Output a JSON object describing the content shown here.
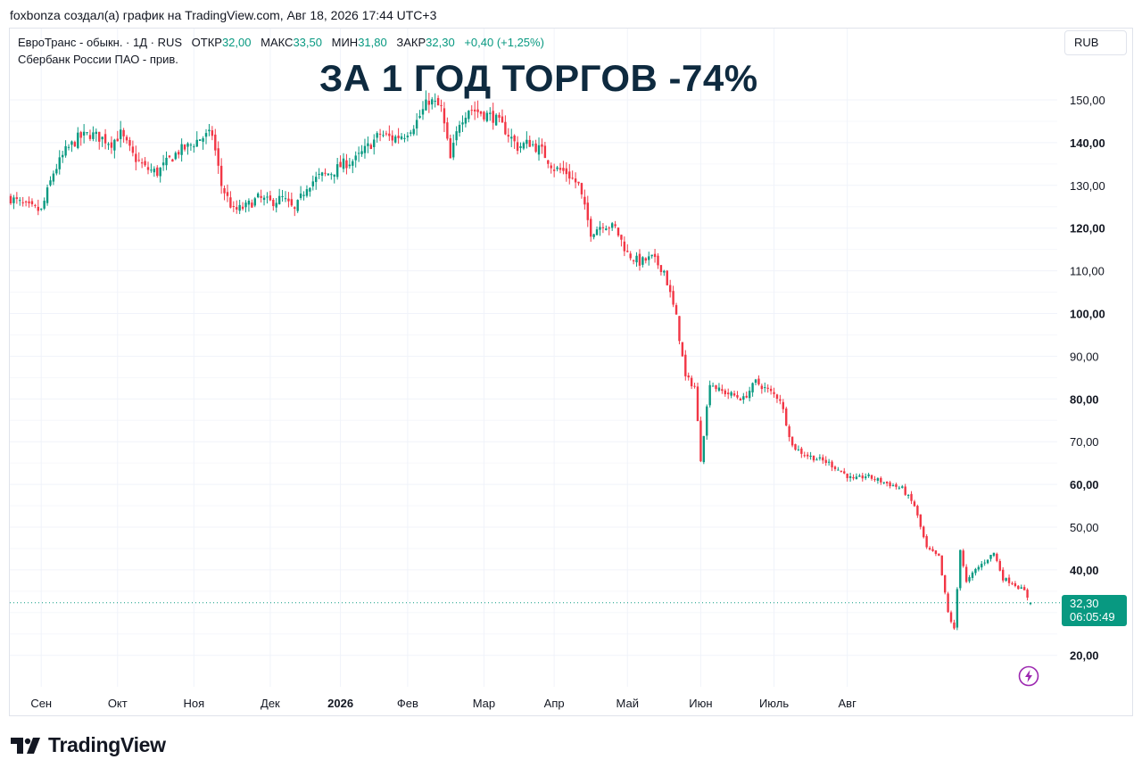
{
  "header": {
    "credit": "foxbonza создал(а) график на TradingView.com, Авг 18, 2026 17:44 UTC+3"
  },
  "legend": {
    "symbol": "ЕвроТранс - обыкн. · 1Д · RUS",
    "open_label": "ОТКР",
    "open": "32,00",
    "high_label": "МАКС",
    "high": "33,50",
    "low_label": "МИН",
    "low": "31,80",
    "close_label": "ЗАКР",
    "close": "32,30",
    "change": "+0,40 (+1,25%)",
    "source": "Сбербанк России ПАО - прив."
  },
  "headline": "ЗА 1 ГОД ТОРГОВ -74%",
  "currency": "RUB",
  "price_tag": {
    "price": "32,30",
    "countdown": "06:05:49"
  },
  "brand": {
    "name": "TradingView"
  },
  "colors": {
    "up": "#089981",
    "down": "#f23645",
    "grid": "#f0f3fa",
    "text": "#131722",
    "headline": "#0e2a3f"
  },
  "chart_data": {
    "type": "candlestick",
    "y_ticks": [
      "150,00",
      "140,00",
      "130,00",
      "120,00",
      "110,00",
      "100,00",
      "90,00",
      "80,00",
      "70,00",
      "60,00",
      "50,00",
      "40,00",
      "20,00"
    ],
    "y_ticks_bold": [
      "140,00",
      "120,00",
      "100,00",
      "80,00",
      "60,00",
      "40,00",
      "20,00"
    ],
    "x_ticks": [
      "Сен",
      "Окт",
      "Ноя",
      "Дек",
      "2026",
      "Фев",
      "Мар",
      "Апр",
      "Май",
      "Июн",
      "Июль",
      "Авг"
    ],
    "x_ticks_bold": [
      "2026"
    ],
    "ylim": [
      12,
      158
    ],
    "last_price": 32.3,
    "path": [
      [
        0,
        127
      ],
      [
        5,
        125
      ],
      [
        10,
        124
      ],
      [
        14,
        133
      ],
      [
        18,
        138
      ],
      [
        22,
        141
      ],
      [
        26,
        142
      ],
      [
        30,
        141
      ],
      [
        33,
        140
      ],
      [
        36,
        142
      ],
      [
        40,
        137
      ],
      [
        44,
        134
      ],
      [
        48,
        133
      ],
      [
        52,
        136
      ],
      [
        55,
        138
      ],
      [
        58,
        139
      ],
      [
        62,
        141
      ],
      [
        66,
        142
      ],
      [
        69,
        130
      ],
      [
        73,
        124
      ],
      [
        77,
        125
      ],
      [
        81,
        127
      ],
      [
        85,
        126
      ],
      [
        89,
        127
      ],
      [
        93,
        124
      ],
      [
        97,
        130
      ],
      [
        101,
        132
      ],
      [
        105,
        133
      ],
      [
        109,
        135
      ],
      [
        113,
        136
      ],
      [
        117,
        139
      ],
      [
        121,
        142
      ],
      [
        125,
        141
      ],
      [
        129,
        142
      ],
      [
        133,
        145
      ],
      [
        137,
        150
      ],
      [
        141,
        148
      ],
      [
        144,
        136
      ],
      [
        147,
        145
      ],
      [
        150,
        148
      ],
      [
        154,
        147
      ],
      [
        158,
        146
      ],
      [
        162,
        143
      ],
      [
        166,
        139
      ],
      [
        170,
        140
      ],
      [
        174,
        138
      ],
      [
        178,
        134
      ],
      [
        182,
        133
      ],
      [
        186,
        130
      ],
      [
        190,
        119
      ],
      [
        194,
        121
      ],
      [
        198,
        120
      ],
      [
        202,
        114
      ],
      [
        206,
        112
      ],
      [
        210,
        113
      ],
      [
        214,
        110
      ],
      [
        218,
        99
      ],
      [
        221,
        85
      ],
      [
        224,
        83
      ],
      [
        226,
        66
      ],
      [
        229,
        84
      ],
      [
        232,
        82
      ],
      [
        236,
        81
      ],
      [
        240,
        80
      ],
      [
        244,
        84
      ],
      [
        248,
        82
      ],
      [
        252,
        80
      ],
      [
        256,
        69
      ],
      [
        260,
        67
      ],
      [
        264,
        66
      ],
      [
        268,
        65
      ],
      [
        272,
        63
      ],
      [
        276,
        61
      ],
      [
        280,
        62
      ],
      [
        284,
        61
      ],
      [
        288,
        60
      ],
      [
        292,
        59
      ],
      [
        296,
        55
      ],
      [
        300,
        45
      ],
      [
        304,
        43
      ],
      [
        307,
        30
      ],
      [
        309,
        26
      ],
      [
        311,
        45
      ],
      [
        313,
        37
      ],
      [
        316,
        40
      ],
      [
        319,
        42
      ],
      [
        322,
        44
      ],
      [
        325,
        38
      ],
      [
        328,
        37
      ],
      [
        332,
        35
      ],
      [
        334,
        32.3
      ]
    ],
    "x_tick_index": [
      10,
      35,
      60,
      85,
      108,
      130,
      155,
      178,
      202,
      226,
      250,
      274
    ],
    "n_days": 335
  }
}
